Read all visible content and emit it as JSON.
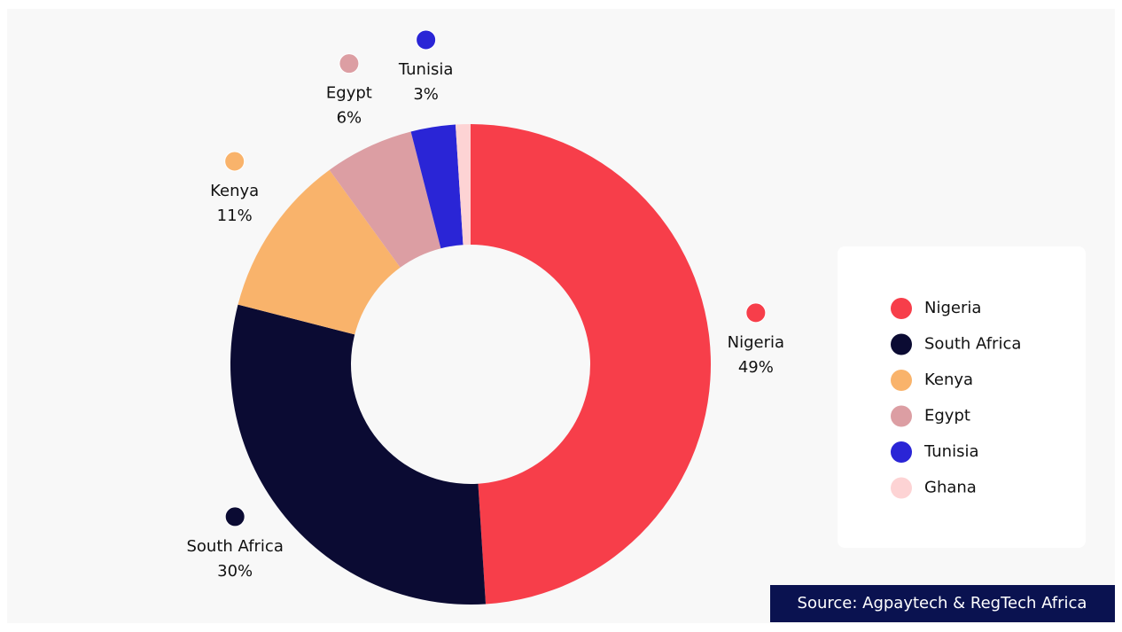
{
  "chart_data": {
    "type": "donut",
    "categories": [
      "Nigeria",
      "South Africa",
      "Kenya",
      "Egypt",
      "Tunisia",
      "Ghana"
    ],
    "values": [
      49,
      30,
      11,
      6,
      3,
      1
    ],
    "value_labels": [
      "49%",
      "30%",
      "11%",
      "6%",
      "3%",
      null
    ],
    "colors": [
      "#f73e4a",
      "#0b0b33",
      "#f9b36b",
      "#dc9ea3",
      "#2a25d6",
      "#fdd3d4"
    ],
    "legend": "right",
    "source": "Source: Agpaytech & RegTech Africa"
  }
}
